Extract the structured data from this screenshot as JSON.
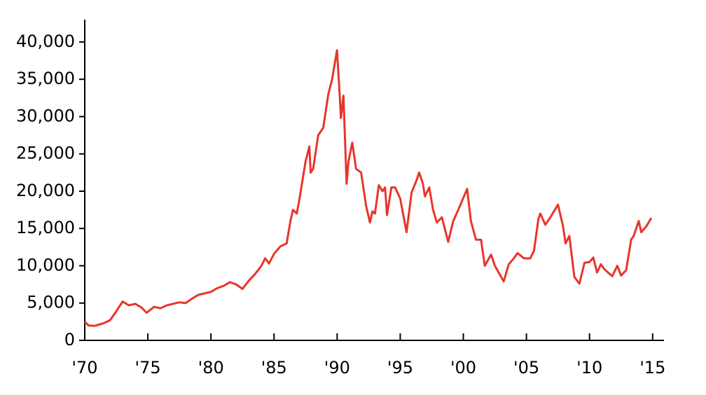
{
  "chart_data": {
    "type": "line",
    "color": "#e8352a",
    "x": [
      1970.0,
      1970.3,
      1970.8,
      1971.5,
      1972.0,
      1972.5,
      1973.0,
      1973.5,
      1974.0,
      1974.5,
      1974.9,
      1975.5,
      1976.0,
      1976.5,
      1977.0,
      1977.5,
      1978.0,
      1978.5,
      1979.0,
      1980.0,
      1980.5,
      1981.0,
      1981.5,
      1982.0,
      1982.5,
      1983.0,
      1983.5,
      1984.0,
      1984.3,
      1984.6,
      1985.0,
      1985.5,
      1986.0,
      1986.3,
      1986.5,
      1986.8,
      1987.0,
      1987.5,
      1987.8,
      1987.9,
      1988.1,
      1988.5,
      1988.9,
      1989.3,
      1989.6,
      1989.99,
      1990.2,
      1990.3,
      1990.5,
      1990.75,
      1990.9,
      1991.2,
      1991.5,
      1991.9,
      1992.3,
      1992.6,
      1992.8,
      1993.0,
      1993.3,
      1993.6,
      1993.8,
      1993.95,
      1994.3,
      1994.6,
      1995.0,
      1995.5,
      1995.9,
      1996.3,
      1996.5,
      1996.8,
      1996.95,
      1997.3,
      1997.6,
      1997.9,
      1998.3,
      1998.8,
      1999.2,
      1999.6,
      2000.1,
      2000.3,
      2000.6,
      2001.0,
      2001.4,
      2001.7,
      2002.2,
      2002.5,
      2003.2,
      2003.6,
      2004.0,
      2004.3,
      2004.8,
      2005.3,
      2005.6,
      2005.95,
      2006.1,
      2006.5,
      2006.9,
      2007.5,
      2007.9,
      2008.1,
      2008.4,
      2008.8,
      2009.2,
      2009.6,
      2010.0,
      2010.3,
      2010.6,
      2010.9,
      2011.2,
      2011.8,
      2012.2,
      2012.5,
      2012.9,
      2013.3,
      2013.5,
      2013.9,
      2014.1,
      2014.5,
      2014.9
    ],
    "values": [
      2500,
      2000,
      1950,
      2300,
      2700,
      3900,
      5200,
      4700,
      4900,
      4400,
      3700,
      4500,
      4300,
      4700,
      4900,
      5100,
      5000,
      5600,
      6100,
      6500,
      7000,
      7300,
      7800,
      7500,
      6900,
      8000,
      8900,
      10000,
      11000,
      10300,
      11600,
      12600,
      13000,
      16000,
      17500,
      17000,
      18800,
      24000,
      26000,
      22500,
      23000,
      27500,
      28500,
      33000,
      35000,
      38900,
      33000,
      29800,
      32800,
      21000,
      24000,
      26500,
      23000,
      22500,
      18000,
      15800,
      17300,
      17000,
      20800,
      20000,
      20500,
      16800,
      20500,
      20500,
      19000,
      14500,
      19800,
      21500,
      22500,
      21000,
      19300,
      20500,
      17500,
      15800,
      16500,
      13200,
      16000,
      17500,
      19500,
      20300,
      16000,
      13500,
      13500,
      10000,
      11500,
      10000,
      7900,
      10200,
      11000,
      11700,
      11000,
      11000,
      12000,
      16300,
      17000,
      15500,
      16500,
      18200,
      15300,
      13000,
      14000,
      8500,
      7600,
      10400,
      10500,
      11100,
      9100,
      10200,
      9500,
      8600,
      10000,
      8700,
      9400,
      13500,
      14000,
      16000,
      14500,
      15300,
      16400
    ],
    "xlim": [
      1970,
      2015.9
    ],
    "ylim": [
      0,
      43000
    ],
    "xticks": [
      {
        "value": 1970,
        "label": "'70"
      },
      {
        "value": 1975,
        "label": "'75"
      },
      {
        "value": 1980,
        "label": "'80"
      },
      {
        "value": 1985,
        "label": "'85"
      },
      {
        "value": 1990,
        "label": "'90"
      },
      {
        "value": 1995,
        "label": "'95"
      },
      {
        "value": 2000,
        "label": "'00"
      },
      {
        "value": 2005,
        "label": "'05"
      },
      {
        "value": 2010,
        "label": "'10"
      },
      {
        "value": 2015,
        "label": "'15"
      }
    ],
    "yticks": [
      0,
      {
        "value": 5000,
        "label": "5,000"
      },
      {
        "value": 10000,
        "label": "10,000"
      },
      {
        "value": 15000,
        "label": "15,000"
      },
      {
        "value": 20000,
        "label": "20,000"
      },
      {
        "value": 25000,
        "label": "25,000"
      },
      {
        "value": 30000,
        "label": "30,000"
      },
      {
        "value": 35000,
        "label": "35,000"
      },
      {
        "value": 40000,
        "label": "40,000"
      }
    ]
  }
}
